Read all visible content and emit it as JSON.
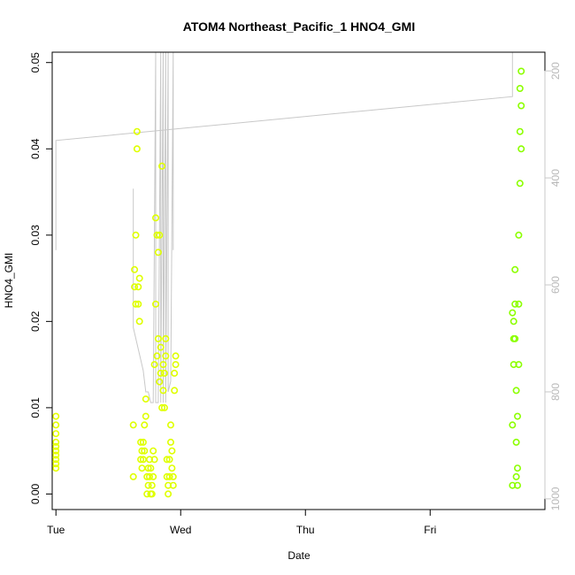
{
  "chart_data": {
    "type": "scatter",
    "title": "ATOM4 Northeast_Pacific_1 HNO4_GMI",
    "xlabel": "Date",
    "ylabel": "HNO4_GMI",
    "x_ticks": [
      "Tue",
      "Wed",
      "Thu",
      "Fri"
    ],
    "xlim_days": [
      -0.03,
      3.92
    ],
    "ylim": [
      -0.0018,
      0.0512
    ],
    "y_ticks": [
      0.0,
      0.01,
      0.02,
      0.03,
      0.04,
      0.05
    ],
    "y_tick_labels": [
      "0.00",
      "0.01",
      "0.02",
      "0.03",
      "0.04",
      "0.05"
    ],
    "y2_ticks": [
      200,
      400,
      600,
      800,
      1000
    ],
    "y2_lim": [
      1020,
      165
    ],
    "y2_color": "#c8c8c8",
    "grid": false,
    "colors": {
      "yellow": "#dfff00",
      "green": "#7cff00",
      "line": "#c8c8c8"
    },
    "pressure_line": [
      [
        0.0,
        330
      ],
      [
        0.0,
        535
      ],
      [
        0.0,
        330
      ],
      [
        3.66,
        248
      ],
      [
        3.66,
        165
      ],
      [
        3.73,
        165
      ]
    ],
    "pressure_early": [
      [
        0.62,
        420
      ],
      [
        0.62,
        680
      ],
      [
        0.64,
        700
      ],
      [
        0.7,
        760
      ],
      [
        0.72,
        800
      ],
      [
        0.74,
        800
      ],
      [
        0.76,
        820
      ],
      [
        0.78,
        820
      ],
      [
        0.8,
        165
      ],
      [
        0.8,
        820
      ],
      [
        0.82,
        820
      ],
      [
        0.84,
        165
      ],
      [
        0.84,
        820
      ],
      [
        0.86,
        165
      ],
      [
        0.86,
        820
      ],
      [
        0.88,
        165
      ],
      [
        0.88,
        820
      ],
      [
        0.9,
        165
      ],
      [
        0.9,
        800
      ],
      [
        0.92,
        780
      ],
      [
        0.94,
        165
      ],
      [
        0.94,
        535
      ]
    ],
    "series": [
      {
        "color": "#e4ff00",
        "x": [
          0.0,
          0.0,
          0.0,
          0.0,
          0.0,
          0.0,
          0.0,
          0.0,
          0.0,
          0.0
        ],
        "y": [
          0.003,
          0.0035,
          0.004,
          0.0045,
          0.005,
          0.0055,
          0.006,
          0.007,
          0.008,
          0.009
        ]
      },
      {
        "color": "#dfff00",
        "x": [
          0.62,
          0.62,
          0.63,
          0.63,
          0.64,
          0.64,
          0.65,
          0.65,
          0.66,
          0.66,
          0.67,
          0.67,
          0.68,
          0.68,
          0.69,
          0.69,
          0.7,
          0.7,
          0.71,
          0.71,
          0.72,
          0.72,
          0.73,
          0.73,
          0.74,
          0.74,
          0.75,
          0.75,
          0.76,
          0.76,
          0.77,
          0.77,
          0.78,
          0.78,
          0.79,
          0.79,
          0.8,
          0.8,
          0.81,
          0.81,
          0.82,
          0.82,
          0.83,
          0.83,
          0.84,
          0.84,
          0.85,
          0.85,
          0.86,
          0.86,
          0.87,
          0.87,
          0.88,
          0.88,
          0.89,
          0.89,
          0.9,
          0.9,
          0.91,
          0.91,
          0.92,
          0.92,
          0.93,
          0.93,
          0.94,
          0.94,
          0.95,
          0.95,
          0.96,
          0.96
        ],
        "y": [
          0.002,
          0.008,
          0.024,
          0.026,
          0.03,
          0.022,
          0.042,
          0.04,
          0.024,
          0.022,
          0.025,
          0.02,
          0.006,
          0.004,
          0.003,
          0.005,
          0.004,
          0.006,
          0.005,
          0.008,
          0.009,
          0.011,
          0.002,
          0.0,
          0.001,
          0.003,
          0.004,
          0.002,
          0.0,
          0.003,
          0.001,
          0.0,
          0.002,
          0.005,
          0.004,
          0.015,
          0.022,
          0.032,
          0.03,
          0.016,
          0.028,
          0.018,
          0.03,
          0.013,
          0.017,
          0.014,
          0.038,
          0.01,
          0.015,
          0.012,
          0.01,
          0.014,
          0.016,
          0.018,
          0.004,
          0.002,
          0.001,
          0.0,
          0.002,
          0.004,
          0.006,
          0.008,
          0.005,
          0.003,
          0.002,
          0.001,
          0.012,
          0.014,
          0.015,
          0.016
        ]
      },
      {
        "color": "#8cff00",
        "x": [
          3.66,
          3.66,
          3.66,
          3.67,
          3.67,
          3.67,
          3.68,
          3.68,
          3.68,
          3.69,
          3.69,
          3.69,
          3.7,
          3.7,
          3.7,
          3.71,
          3.71,
          3.71,
          3.72,
          3.72,
          3.72,
          3.73,
          3.73,
          3.73
        ],
        "y": [
          0.001,
          0.008,
          0.021,
          0.015,
          0.02,
          0.018,
          0.026,
          0.022,
          0.018,
          0.012,
          0.006,
          0.002,
          0.001,
          0.003,
          0.009,
          0.015,
          0.022,
          0.03,
          0.036,
          0.042,
          0.047,
          0.049,
          0.045,
          0.04
        ]
      }
    ]
  }
}
